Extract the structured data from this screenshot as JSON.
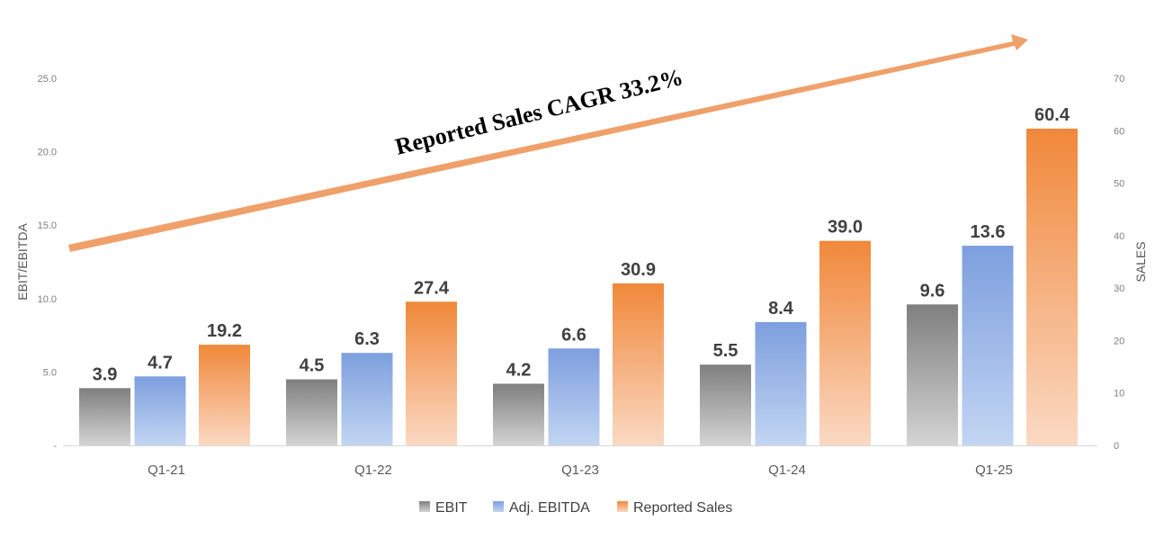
{
  "chart_data": {
    "type": "bar",
    "categories": [
      "Q1-21",
      "Q1-22",
      "Q1-23",
      "Q1-24",
      "Q1-25"
    ],
    "series": [
      {
        "name": "EBIT",
        "axis": "left",
        "values": [
          3.9,
          4.5,
          4.2,
          5.5,
          9.6
        ],
        "labels": [
          "3.9",
          "4.5",
          "4.2",
          "5.5",
          "9.6"
        ],
        "color_top": "#7f7f7f",
        "color_bottom": "#d4d4d4"
      },
      {
        "name": "Adj. EBITDA",
        "axis": "left",
        "values": [
          4.7,
          6.3,
          6.6,
          8.4,
          13.6
        ],
        "labels": [
          "4.7",
          "6.3",
          "6.6",
          "8.4",
          "13.6"
        ],
        "color_top": "#7d9fdf",
        "color_bottom": "#c2d5f2"
      },
      {
        "name": "Reported Sales",
        "axis": "right",
        "values": [
          19.2,
          27.4,
          30.9,
          39.0,
          60.4
        ],
        "labels": [
          "19.2",
          "27.4",
          "30.9",
          "39.0",
          "60.4"
        ],
        "color_top": "#f0883a",
        "color_bottom": "#fbd9c3"
      }
    ],
    "left_axis": {
      "title": "EBIT/EBITDA",
      "ylim": [
        0,
        25
      ],
      "ticks": [
        0,
        5,
        10,
        15,
        20,
        25
      ],
      "tick_labels": [
        "-",
        "5.0",
        "10.0",
        "15.0",
        "20.0",
        "25.0"
      ]
    },
    "right_axis": {
      "title": "SALES",
      "ylim": [
        0,
        70
      ],
      "ticks": [
        0,
        10,
        20,
        30,
        40,
        50,
        60,
        70
      ],
      "tick_labels": [
        "0",
        "10",
        "20",
        "30",
        "40",
        "50",
        "60",
        "70"
      ]
    },
    "annotation": {
      "text": "Reported Sales CAGR",
      "value": "33.2%",
      "arrow_color": "#f0a06a"
    },
    "legend_position": "bottom-center"
  }
}
